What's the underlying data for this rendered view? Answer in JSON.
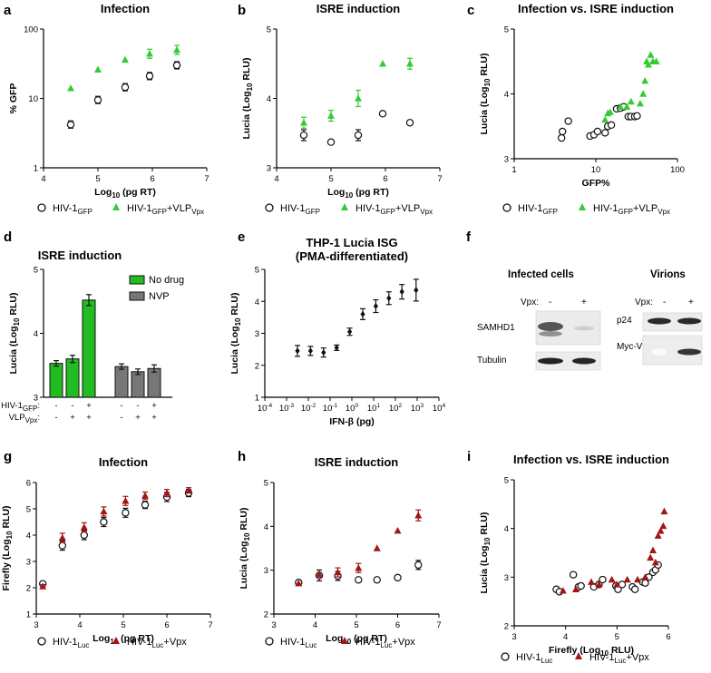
{
  "colors": {
    "green": "#33cc33",
    "red": "#a31515",
    "black": "#111111",
    "nodrug": "#22bb22",
    "nvp": "#777777"
  },
  "chart_data": [
    {
      "id": "a",
      "type": "scatter",
      "title": "Infection",
      "xlabel": "Log10 (pg RT)",
      "ylabel": "% GFP",
      "xlim": [
        4,
        7
      ],
      "ylim": [
        1,
        100
      ],
      "yscale": "log",
      "xticks": [
        "4",
        "5",
        "6",
        "7"
      ],
      "yticks": [
        "1",
        "10",
        "100"
      ],
      "series": [
        {
          "name": "HIV-1GFP",
          "marker": "circle",
          "x": [
            4.5,
            5.0,
            5.5,
            5.95,
            6.45
          ],
          "y": [
            4.2,
            9.5,
            14.5,
            21,
            30
          ]
        },
        {
          "name": "HIV-1GFP+VLPVpx",
          "marker": "triangle",
          "x": [
            4.5,
            5.0,
            5.5,
            5.95,
            6.45
          ],
          "y": [
            14,
            26,
            36,
            44,
            50
          ]
        }
      ]
    },
    {
      "id": "b",
      "type": "scatter",
      "title": "ISRE induction",
      "xlabel": "Log10 (pg RT)",
      "ylabel": "Lucia (Log10 RLU)",
      "xlim": [
        4,
        7
      ],
      "ylim": [
        3,
        5
      ],
      "xticks": [
        "4",
        "5",
        "6",
        "7"
      ],
      "yticks": [
        "3",
        "4",
        "5"
      ],
      "series": [
        {
          "name": "HIV-1GFP",
          "marker": "circle",
          "x": [
            4.5,
            5.0,
            5.5,
            5.95,
            6.45
          ],
          "y": [
            3.47,
            3.37,
            3.47,
            3.78,
            3.65
          ]
        },
        {
          "name": "HIV-1GFP+VLPVpx",
          "marker": "triangle",
          "x": [
            4.5,
            5.0,
            5.5,
            5.95,
            6.45
          ],
          "y": [
            3.65,
            3.75,
            4.0,
            4.5,
            4.5
          ]
        }
      ]
    },
    {
      "id": "c",
      "type": "scatter",
      "title": "Infection vs. ISRE induction",
      "xlabel": "GFP%",
      "ylabel": "Lucia (Log10 RLU)",
      "xlim": [
        1,
        100
      ],
      "xscale": "log",
      "ylim": [
        3,
        5
      ],
      "xticks": [
        "1",
        "10",
        "100"
      ],
      "yticks": [
        "3",
        "4",
        "5"
      ],
      "series": [
        {
          "name": "HIV-1GFP",
          "marker": "circle",
          "x": [
            3.8,
            3.9,
            4.6,
            8.5,
            9.5,
            10.5,
            13,
            14,
            15.5,
            18,
            20,
            22,
            25,
            27,
            30,
            32
          ],
          "y": [
            3.32,
            3.42,
            3.58,
            3.35,
            3.37,
            3.42,
            3.4,
            3.5,
            3.52,
            3.77,
            3.78,
            3.8,
            3.65,
            3.65,
            3.65,
            3.66
          ]
        },
        {
          "name": "HIV-1GFP+VLPVpx",
          "marker": "triangle",
          "x": [
            13,
            14,
            15,
            20,
            24,
            27,
            35,
            38,
            40,
            42,
            44,
            47,
            50,
            55
          ],
          "y": [
            3.6,
            3.7,
            3.72,
            3.8,
            3.8,
            3.88,
            3.85,
            4.0,
            4.2,
            4.5,
            4.45,
            4.6,
            4.5,
            4.5
          ]
        }
      ]
    },
    {
      "id": "d",
      "type": "bar",
      "title": "ISRE induction",
      "ylabel": "Lucia (Log10 RLU)",
      "ylim": [
        3,
        5
      ],
      "yticks": [
        "3",
        "4",
        "5"
      ],
      "row_labels": [
        "HIV-1GFP",
        "VLPVpx"
      ],
      "groups": [
        {
          "name": "No drug",
          "values": [
            3.53,
            3.6,
            4.52
          ],
          "hiv": [
            "-",
            "-",
            "+"
          ],
          "vlp": [
            "-",
            "+",
            "+"
          ]
        },
        {
          "name": "NVP",
          "values": [
            3.48,
            3.4,
            3.45
          ],
          "hiv": [
            "-",
            "-",
            "+"
          ],
          "vlp": [
            "-",
            "+",
            "+"
          ]
        }
      ]
    },
    {
      "id": "e",
      "type": "scatter",
      "title": "THP-1 Lucia ISG",
      "subtitle": "(PMA-differentiated)",
      "xlabel": "IFN-β (pg)",
      "ylabel": "Lucia (Log10 RLU)",
      "xlim_log10": [
        -4,
        4
      ],
      "ylim": [
        1,
        5
      ],
      "xticks": [
        "10-4",
        "10-3",
        "10-2",
        "10-1",
        "100",
        "101",
        "102",
        "103",
        "104"
      ],
      "yticks": [
        "1",
        "2",
        "3",
        "4",
        "5"
      ],
      "series": [
        {
          "name": "IFN dose",
          "marker": "diamond",
          "log10x": [
            -2.5,
            -1.9,
            -1.3,
            -0.7,
            -0.1,
            0.5,
            1.1,
            1.7,
            2.3,
            2.95
          ],
          "y": [
            2.45,
            2.45,
            2.4,
            2.55,
            3.05,
            3.6,
            3.85,
            4.1,
            4.3,
            4.35
          ]
        }
      ]
    },
    {
      "id": "g",
      "type": "scatter",
      "title": "Infection",
      "xlabel": "Log10 (pg RT)",
      "ylabel": "Firefly (Log10 RLU)",
      "xlim": [
        3,
        7
      ],
      "ylim": [
        1,
        6
      ],
      "xticks": [
        "3",
        "4",
        "5",
        "6",
        "7"
      ],
      "yticks": [
        "1",
        "2",
        "3",
        "4",
        "5",
        "6"
      ],
      "series": [
        {
          "name": "HIV-1Luc",
          "marker": "circle",
          "x": [
            3.15,
            3.6,
            4.1,
            4.55,
            5.05,
            5.5,
            6.0,
            6.5
          ],
          "y": [
            2.15,
            3.6,
            4.0,
            4.5,
            4.85,
            5.15,
            5.45,
            5.6
          ]
        },
        {
          "name": "HIV-1Luc+Vpx",
          "marker": "triangle",
          "x": [
            3.15,
            3.6,
            4.1,
            4.55,
            5.05,
            5.5,
            6.0,
            6.5
          ],
          "y": [
            2.05,
            3.9,
            4.3,
            4.9,
            5.3,
            5.5,
            5.6,
            5.7
          ]
        }
      ]
    },
    {
      "id": "h",
      "type": "scatter",
      "title": "ISRE induction",
      "xlabel": "Log10 (pg RT)",
      "ylabel": "Lucia (Log10 RLU)",
      "xlim": [
        3,
        7
      ],
      "ylim": [
        2,
        5
      ],
      "xticks": [
        "3",
        "4",
        "5",
        "6",
        "7"
      ],
      "yticks": [
        "2",
        "3",
        "4",
        "5"
      ],
      "series": [
        {
          "name": "HIV-1Luc",
          "marker": "circle",
          "x": [
            3.6,
            4.1,
            4.55,
            5.05,
            5.5,
            6.0,
            6.5
          ],
          "y": [
            2.72,
            2.88,
            2.87,
            2.78,
            2.78,
            2.83,
            3.12
          ]
        },
        {
          "name": "HIV-1Luc+Vpx",
          "marker": "triangle",
          "x": [
            3.6,
            4.1,
            4.55,
            5.05,
            5.5,
            6.0,
            6.5
          ],
          "y": [
            2.7,
            2.9,
            2.95,
            3.05,
            3.5,
            3.9,
            4.25
          ]
        }
      ]
    },
    {
      "id": "i",
      "type": "scatter",
      "title": "Infection vs. ISRE induction",
      "xlabel": "Firefly (Log10 RLU)",
      "ylabel": "Lucia (Log10 RLU)",
      "xlim": [
        3,
        6
      ],
      "ylim": [
        2,
        5
      ],
      "xticks": [
        "3",
        "4",
        "5",
        "6"
      ],
      "yticks": [
        "2",
        "3",
        "4",
        "5"
      ],
      "series": [
        {
          "name": "HIV-1Luc",
          "marker": "circle",
          "x": [
            3.82,
            3.88,
            4.15,
            4.25,
            4.3,
            4.55,
            4.65,
            4.72,
            4.98,
            5.02,
            5.1,
            5.3,
            5.35,
            5.5,
            5.55,
            5.62,
            5.7,
            5.75,
            5.8
          ],
          "y": [
            2.75,
            2.7,
            3.05,
            2.8,
            2.82,
            2.8,
            2.85,
            2.95,
            2.82,
            2.75,
            2.85,
            2.8,
            2.75,
            2.9,
            2.88,
            3.0,
            3.1,
            3.15,
            3.25
          ]
        },
        {
          "name": "HIV-1Luc+Vpx",
          "marker": "triangle",
          "x": [
            3.95,
            4.2,
            4.5,
            4.65,
            4.9,
            5.0,
            5.2,
            5.4,
            5.55,
            5.65,
            5.7,
            5.75,
            5.8,
            5.85,
            5.9,
            5.92
          ],
          "y": [
            2.72,
            2.75,
            2.9,
            2.85,
            2.95,
            2.85,
            2.95,
            2.95,
            3.0,
            3.4,
            3.55,
            3.3,
            3.85,
            3.95,
            4.05,
            4.35
          ]
        }
      ]
    }
  ],
  "western_blot": {
    "panel": "f",
    "infected": {
      "title": "Infected cells",
      "vpx_label": "Vpx:",
      "lanes": [
        "-",
        "+"
      ],
      "rows": [
        "SAMHD1",
        "Tubulin"
      ]
    },
    "virions": {
      "title": "Virions",
      "vpx_label": "Vpx:",
      "lanes": [
        "-",
        "+"
      ],
      "rows": [
        "p24",
        "Myc-Vpx"
      ]
    }
  },
  "legends": {
    "abc": {
      "open": "HIV-1",
      "open_sub": "GFP",
      "filled": "HIV-1",
      "filled_sub": "GFP",
      "filled_suffix": "+VLP",
      "filled_suffix_sub": "Vpx"
    },
    "d": {
      "nodrug": "No drug",
      "nvp": "NVP"
    },
    "ghi": {
      "open": "HIV-1",
      "open_sub": "Luc",
      "filled": "HIV-1",
      "filled_sub": "Luc",
      "filled_suffix": "+Vpx"
    }
  },
  "panel_labels": [
    "a",
    "b",
    "c",
    "d",
    "e",
    "f",
    "g",
    "h",
    "i"
  ]
}
